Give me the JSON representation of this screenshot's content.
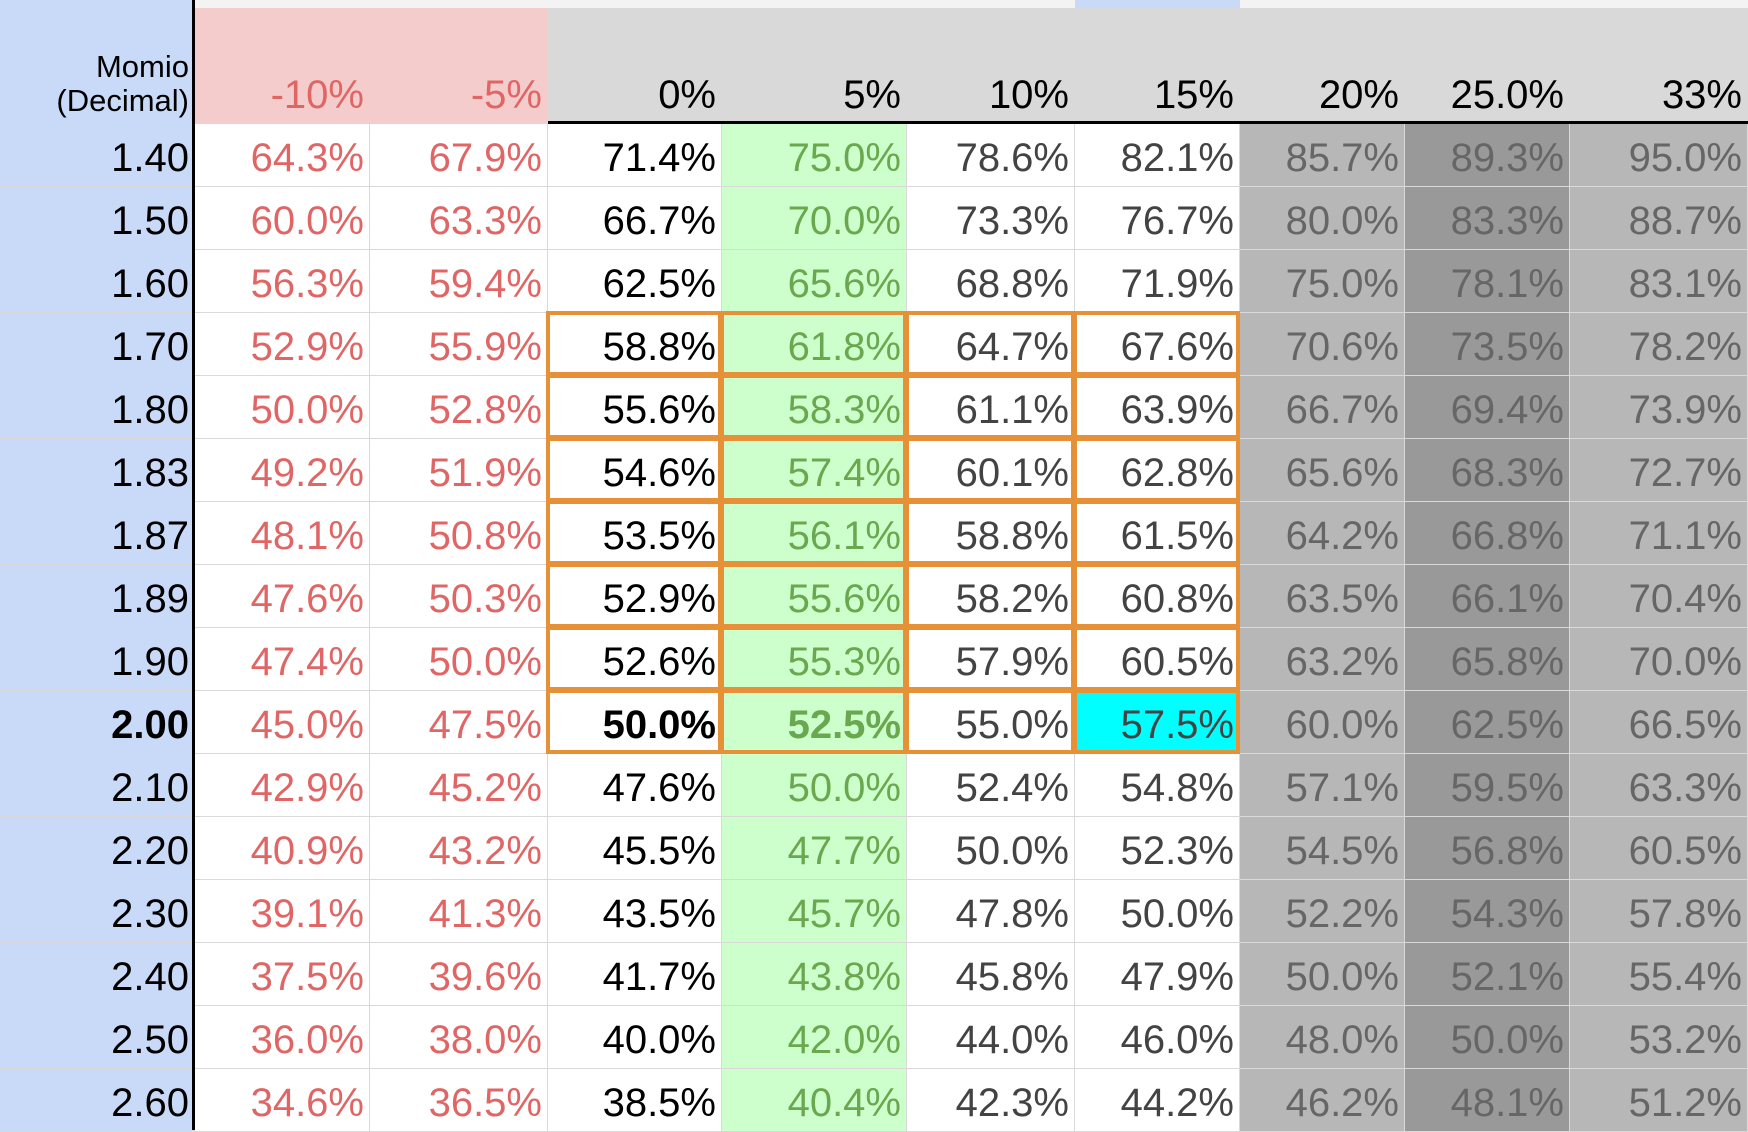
{
  "header": {
    "corner_line1": "Momio",
    "corner_line2": "(Decimal)",
    "columns": [
      "-10%",
      "-5%",
      "0%",
      "5%",
      "10%",
      "15%",
      "20%",
      "25.0%",
      "33%"
    ]
  },
  "rows": [
    {
      "label": "1.40",
      "bold": false,
      "values": [
        "64.3%",
        "67.9%",
        "71.4%",
        "75.0%",
        "78.6%",
        "82.1%",
        "85.7%",
        "89.3%",
        "95.0%"
      ]
    },
    {
      "label": "1.50",
      "bold": false,
      "values": [
        "60.0%",
        "63.3%",
        "66.7%",
        "70.0%",
        "73.3%",
        "76.7%",
        "80.0%",
        "83.3%",
        "88.7%"
      ]
    },
    {
      "label": "1.60",
      "bold": false,
      "values": [
        "56.3%",
        "59.4%",
        "62.5%",
        "65.6%",
        "68.8%",
        "71.9%",
        "75.0%",
        "78.1%",
        "83.1%"
      ]
    },
    {
      "label": "1.70",
      "bold": false,
      "values": [
        "52.9%",
        "55.9%",
        "58.8%",
        "61.8%",
        "64.7%",
        "67.6%",
        "70.6%",
        "73.5%",
        "78.2%"
      ]
    },
    {
      "label": "1.80",
      "bold": false,
      "values": [
        "50.0%",
        "52.8%",
        "55.6%",
        "58.3%",
        "61.1%",
        "63.9%",
        "66.7%",
        "69.4%",
        "73.9%"
      ]
    },
    {
      "label": "1.83",
      "bold": false,
      "values": [
        "49.2%",
        "51.9%",
        "54.6%",
        "57.4%",
        "60.1%",
        "62.8%",
        "65.6%",
        "68.3%",
        "72.7%"
      ]
    },
    {
      "label": "1.87",
      "bold": false,
      "values": [
        "48.1%",
        "50.8%",
        "53.5%",
        "56.1%",
        "58.8%",
        "61.5%",
        "64.2%",
        "66.8%",
        "71.1%"
      ]
    },
    {
      "label": "1.89",
      "bold": false,
      "values": [
        "47.6%",
        "50.3%",
        "52.9%",
        "55.6%",
        "58.2%",
        "60.8%",
        "63.5%",
        "66.1%",
        "70.4%"
      ]
    },
    {
      "label": "1.90",
      "bold": false,
      "values": [
        "47.4%",
        "50.0%",
        "52.6%",
        "55.3%",
        "57.9%",
        "60.5%",
        "63.2%",
        "65.8%",
        "70.0%"
      ]
    },
    {
      "label": "2.00",
      "bold": true,
      "values": [
        "45.0%",
        "47.5%",
        "50.0%",
        "52.5%",
        "55.0%",
        "57.5%",
        "60.0%",
        "62.5%",
        "66.5%"
      ]
    },
    {
      "label": "2.10",
      "bold": false,
      "values": [
        "42.9%",
        "45.2%",
        "47.6%",
        "50.0%",
        "52.4%",
        "54.8%",
        "57.1%",
        "59.5%",
        "63.3%"
      ]
    },
    {
      "label": "2.20",
      "bold": false,
      "values": [
        "40.9%",
        "43.2%",
        "45.5%",
        "47.7%",
        "50.0%",
        "52.3%",
        "54.5%",
        "56.8%",
        "60.5%"
      ]
    },
    {
      "label": "2.30",
      "bold": false,
      "values": [
        "39.1%",
        "41.3%",
        "43.5%",
        "45.7%",
        "47.8%",
        "50.0%",
        "52.2%",
        "54.3%",
        "57.8%"
      ]
    },
    {
      "label": "2.40",
      "bold": false,
      "values": [
        "37.5%",
        "39.6%",
        "41.7%",
        "43.8%",
        "45.8%",
        "47.9%",
        "50.0%",
        "52.1%",
        "55.4%"
      ]
    },
    {
      "label": "2.50",
      "bold": false,
      "values": [
        "36.0%",
        "38.0%",
        "40.0%",
        "42.0%",
        "44.0%",
        "46.0%",
        "48.0%",
        "50.0%",
        "53.2%"
      ]
    },
    {
      "label": "2.60",
      "bold": false,
      "values": [
        "34.6%",
        "36.5%",
        "38.5%",
        "40.4%",
        "42.3%",
        "44.2%",
        "46.2%",
        "48.1%",
        "51.2%"
      ]
    }
  ],
  "colors": {
    "label_column_bg": "#c9daf8",
    "negative_header_bg": "#f4cccc",
    "neutral_header_bg": "#d9d9d9",
    "negative_text": "#e06666",
    "positive5_text": "#6aa84f",
    "positive5_bg": "#ccffcc",
    "mid_text": "#434343",
    "high_col1_bg": "#b7b7b7",
    "high_col2_bg": "#999999",
    "high_col3_bg": "#b7b7b7",
    "high_text": "#666666",
    "highlight_cell_bg": "#00ffff",
    "box_border": "#e69138",
    "zero_text": "#000000"
  },
  "highlight": {
    "row_label": "2.00",
    "column": "15%"
  },
  "boxed_rows": [
    "1.70",
    "1.80",
    "1.83",
    "1.87",
    "1.89",
    "1.90",
    "2.00"
  ],
  "boxed_columns": [
    "0%",
    "5%",
    "10%",
    "15%"
  ]
}
